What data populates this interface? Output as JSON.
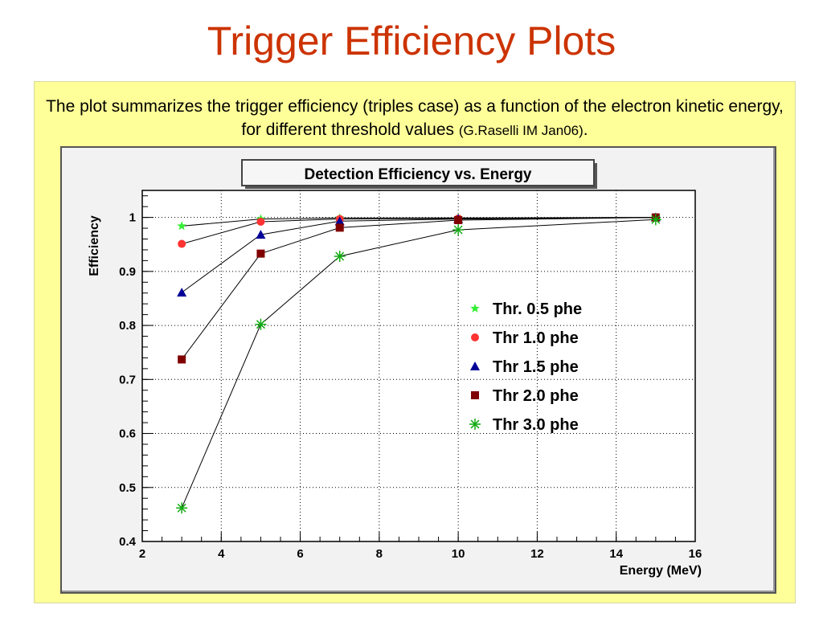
{
  "slide": {
    "title": "Trigger Efficiency Plots",
    "caption_main": "The plot summarizes the trigger efficiency (triples case) as a function of the electron kinetic energy, for different threshold values ",
    "caption_ref": "(G.Raselli IM Jan06)",
    "caption_end": "."
  },
  "chart_data": {
    "type": "scatter",
    "title": "Detection Efficiency vs. Energy",
    "xlabel": "Energy (MeV)",
    "ylabel": "Efficiency",
    "xlim": [
      2,
      16
    ],
    "ylim": [
      0.4,
      1.05
    ],
    "xticks": [
      2,
      4,
      6,
      8,
      10,
      12,
      14,
      16
    ],
    "yticks": [
      0.4,
      0.5,
      0.6,
      0.7,
      0.8,
      0.9,
      1
    ],
    "grid": true,
    "legend_position": "center-right",
    "series": [
      {
        "name": "Thr. 0.5 phe",
        "color": "#33ee33",
        "marker": "star",
        "x": [
          3,
          5,
          7,
          10,
          15
        ],
        "y": [
          0.984,
          0.997,
          0.999,
          0.999,
          1.0
        ]
      },
      {
        "name": "Thr 1.0 phe",
        "color": "#ff3333",
        "marker": "circle",
        "x": [
          3,
          5,
          7,
          10,
          15
        ],
        "y": [
          0.951,
          0.992,
          0.997,
          0.998,
          1.0
        ]
      },
      {
        "name": "Thr 1.5 phe",
        "color": "#000099",
        "marker": "triangle",
        "x": [
          3,
          5,
          7,
          10,
          15
        ],
        "y": [
          0.861,
          0.968,
          0.993,
          0.997,
          1.0
        ]
      },
      {
        "name": "Thr 2.0 phe",
        "color": "#800000",
        "marker": "square",
        "x": [
          3,
          5,
          7,
          10,
          15
        ],
        "y": [
          0.737,
          0.933,
          0.981,
          0.995,
          1.0
        ]
      },
      {
        "name": "Thr 3.0 phe",
        "color": "#11aa11",
        "marker": "asterisk",
        "x": [
          3,
          5,
          7,
          10,
          15
        ],
        "y": [
          0.462,
          0.802,
          0.928,
          0.977,
          0.996
        ]
      }
    ]
  }
}
